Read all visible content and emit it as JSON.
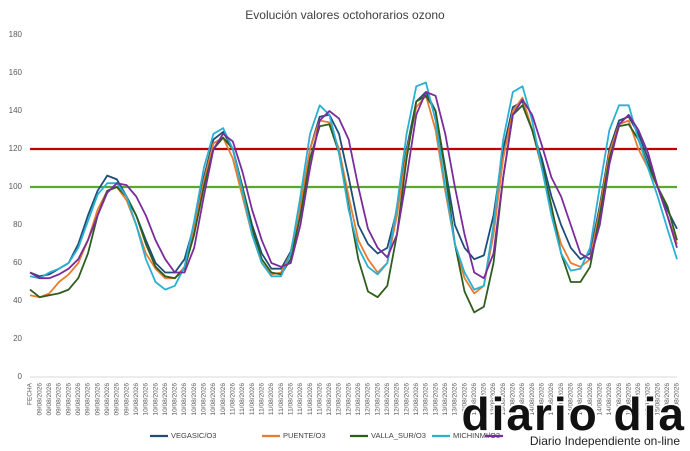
{
  "chart_data": {
    "type": "line",
    "title": "Evolución valores octohorarios ozono",
    "categories": [
      "FECHA",
      "09/08/2026",
      "09/08/2026",
      "09/08/2026",
      "09/08/2026",
      "09/08/2026",
      "09/08/2026",
      "09/08/2026",
      "09/08/2026",
      "09/08/2026",
      "09/08/2026",
      "10/08/2026",
      "10/08/2026",
      "10/08/2026",
      "10/08/2026",
      "10/08/2026",
      "10/08/2026",
      "10/08/2026",
      "10/08/2026",
      "10/08/2026",
      "10/08/2026",
      "11/08/2026",
      "11/08/2026",
      "11/08/2026",
      "11/08/2026",
      "11/08/2026",
      "11/08/2026",
      "11/08/2026",
      "11/08/2026",
      "11/08/2026",
      "11/08/2026",
      "12/08/2026",
      "12/08/2026",
      "12/08/2026",
      "12/08/2026",
      "12/08/2026",
      "12/08/2026",
      "12/08/2026",
      "12/08/2026",
      "12/08/2026",
      "12/08/2026",
      "13/08/2026",
      "13/08/2026",
      "13/08/2026",
      "13/08/2026",
      "13/08/2026",
      "13/08/2026",
      "13/08/2026",
      "13/08/2026",
      "13/08/2026",
      "13/08/2026",
      "14/08/2026",
      "14/08/2026",
      "14/08/2026",
      "14/08/2026",
      "14/08/2026",
      "14/08/2026",
      "14/08/2026",
      "14/08/2026",
      "14/08/2026",
      "14/08/2026",
      "15/08/2026",
      "15/08/2026",
      "15/08/2026",
      "15/08/2026",
      "15/08/2026",
      "15/08/2026",
      "15/08/2026"
    ],
    "series": [
      {
        "name": "VEGASIC/O3",
        "color": "#1f4e79",
        "values": [
          55,
          53,
          54,
          57,
          60,
          70,
          85,
          98,
          106,
          104,
          95,
          85,
          72,
          60,
          55,
          55,
          62,
          80,
          105,
          125,
          129,
          120,
          100,
          80,
          65,
          57,
          57,
          66,
          90,
          120,
          137,
          138,
          128,
          105,
          80,
          70,
          65,
          68,
          88,
          120,
          145,
          150,
          140,
          110,
          80,
          68,
          62,
          64,
          85,
          120,
          142,
          145,
          130,
          115,
          95,
          80,
          68,
          62,
          65,
          90,
          120,
          135,
          137,
          128,
          115,
          100,
          88,
          78
        ]
      },
      {
        "name": "PUENTE/O3",
        "color": "#e97c30",
        "values": [
          43,
          42,
          44,
          50,
          54,
          60,
          72,
          88,
          98,
          100,
          93,
          80,
          65,
          57,
          52,
          52,
          58,
          78,
          103,
          123,
          126,
          115,
          95,
          75,
          60,
          54,
          55,
          65,
          90,
          120,
          135,
          134,
          120,
          95,
          72,
          62,
          55,
          60,
          85,
          118,
          142,
          148,
          130,
          98,
          70,
          52,
          44,
          48,
          75,
          115,
          140,
          147,
          130,
          110,
          88,
          70,
          60,
          58,
          62,
          88,
          118,
          133,
          135,
          120,
          110,
          100,
          85,
          70
        ]
      },
      {
        "name": "VALLA_SUR/O3",
        "color": "#2e5e1e",
        "values": [
          46,
          42,
          43,
          44,
          46,
          52,
          65,
          85,
          98,
          100,
          95,
          85,
          70,
          58,
          53,
          52,
          57,
          75,
          100,
          120,
          126,
          120,
          100,
          78,
          62,
          55,
          54,
          62,
          85,
          115,
          132,
          133,
          118,
          90,
          62,
          45,
          42,
          48,
          75,
          115,
          145,
          148,
          140,
          108,
          70,
          45,
          34,
          37,
          60,
          105,
          138,
          143,
          130,
          112,
          90,
          65,
          50,
          50,
          58,
          85,
          115,
          132,
          133,
          125,
          112,
          100,
          90,
          72
        ]
      },
      {
        "name": "MICHINMI/O3",
        "color": "#2bb0d3",
        "values": [
          53,
          52,
          55,
          57,
          60,
          68,
          82,
          96,
          102,
          102,
          95,
          80,
          62,
          50,
          46,
          48,
          58,
          82,
          110,
          128,
          131,
          120,
          98,
          75,
          60,
          53,
          53,
          65,
          95,
          128,
          143,
          138,
          118,
          88,
          68,
          58,
          54,
          60,
          90,
          128,
          153,
          155,
          135,
          100,
          70,
          55,
          46,
          48,
          80,
          125,
          150,
          153,
          135,
          110,
          85,
          65,
          56,
          57,
          68,
          100,
          130,
          143,
          143,
          125,
          110,
          95,
          78,
          62
        ]
      },
      {
        "name": null,
        "color": "#7b2c9b",
        "values": [
          55,
          52,
          52,
          54,
          57,
          62,
          72,
          85,
          97,
          102,
          101,
          95,
          85,
          72,
          62,
          55,
          55,
          68,
          95,
          120,
          128,
          124,
          108,
          88,
          72,
          60,
          58,
          60,
          80,
          110,
          135,
          140,
          136,
          125,
          100,
          78,
          68,
          63,
          75,
          105,
          138,
          150,
          148,
          128,
          100,
          75,
          55,
          52,
          65,
          105,
          138,
          146,
          138,
          122,
          105,
          95,
          80,
          65,
          62,
          80,
          112,
          133,
          138,
          130,
          118,
          100,
          85,
          68
        ]
      }
    ],
    "thresholds": [
      {
        "value": 120,
        "color": "#c00000"
      },
      {
        "value": 100,
        "color": "#5aa832"
      }
    ],
    "ylim": [
      0,
      180
    ],
    "yticks": [
      0,
      20,
      40,
      60,
      80,
      100,
      120,
      140,
      160,
      180
    ],
    "grid": false,
    "watermark": {
      "logo": "diario dia",
      "tagline": "Diario Independiente on-line"
    }
  }
}
